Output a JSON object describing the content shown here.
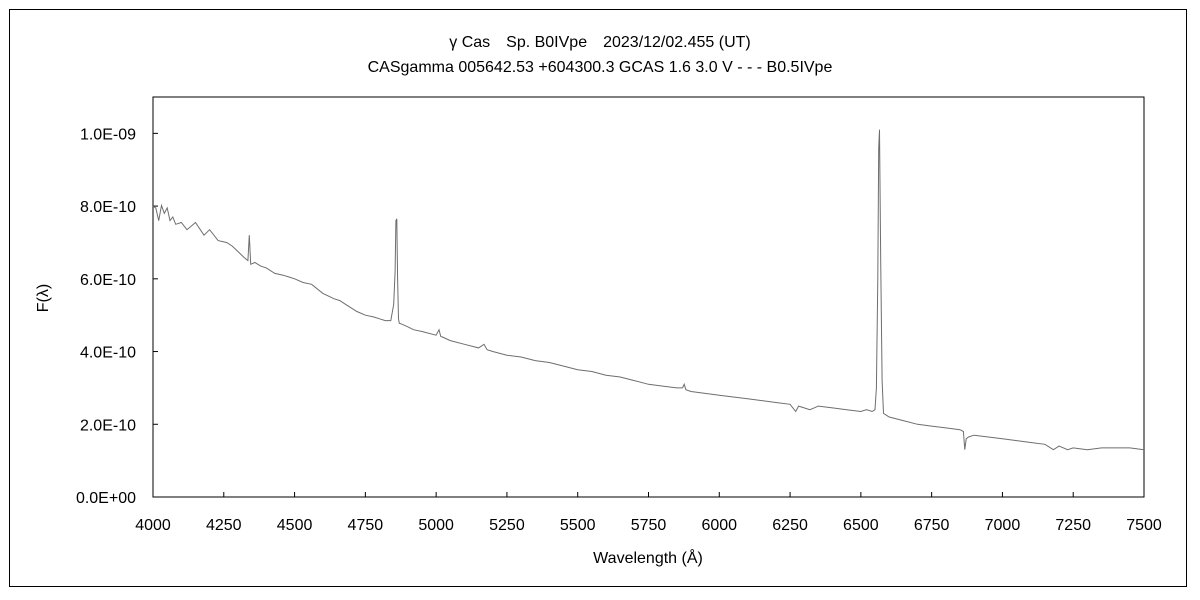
{
  "chart_data": {
    "type": "line",
    "title": "γ Cas　Sp. B0IVpe　2023/12/02.455 (UT)",
    "subtitle": "CASgamma 005642.53 +604300.3 GCAS 1.6 3.0 V - - - B0.5IVpe",
    "xlabel": "Wavelength (Å)",
    "ylabel": "F(λ)",
    "xlim": [
      4000,
      7500
    ],
    "ylim": [
      0,
      1.1e-09
    ],
    "xticks": [
      "4000",
      "4250",
      "4500",
      "4750",
      "5000",
      "5250",
      "5500",
      "5750",
      "6000",
      "6250",
      "6500",
      "6750",
      "7000",
      "7250",
      "7500"
    ],
    "yticks": [
      "0.0E+00",
      "2.0E-10",
      "4.0E-10",
      "6.0E-10",
      "8.0E-10",
      "1.0E-09"
    ],
    "ytick_values": [
      0,
      2e-10,
      4e-10,
      6e-10,
      8e-10,
      1e-09
    ],
    "grid": false,
    "series": [
      {
        "color": "#6e6e6e",
        "x": [
          4000,
          4010,
          4020,
          4030,
          4040,
          4050,
          4060,
          4070,
          4080,
          4100,
          4120,
          4150,
          4180,
          4200,
          4230,
          4260,
          4280,
          4300,
          4320,
          4335,
          4340,
          4345,
          4360,
          4380,
          4400,
          4430,
          4460,
          4480,
          4500,
          4530,
          4560,
          4600,
          4640,
          4660,
          4680,
          4700,
          4720,
          4750,
          4780,
          4800,
          4820,
          4840,
          4850,
          4855,
          4858,
          4861,
          4864,
          4867,
          4870,
          4880,
          4900,
          4920,
          4950,
          5000,
          5010,
          5016,
          5022,
          5050,
          5100,
          5150,
          5169,
          5180,
          5200,
          5250,
          5300,
          5350,
          5400,
          5450,
          5500,
          5550,
          5600,
          5650,
          5700,
          5750,
          5800,
          5850,
          5870,
          5876,
          5882,
          5900,
          5950,
          6000,
          6050,
          6100,
          6150,
          6200,
          6250,
          6270,
          6280,
          6300,
          6320,
          6350,
          6400,
          6450,
          6500,
          6520,
          6540,
          6550,
          6555,
          6560,
          6563,
          6566,
          6570,
          6575,
          6580,
          6590,
          6600,
          6650,
          6700,
          6750,
          6800,
          6850,
          6862,
          6867,
          6872,
          6880,
          6900,
          6950,
          7000,
          7050,
          7100,
          7150,
          7180,
          7200,
          7230,
          7250,
          7300,
          7350,
          7400,
          7450,
          7500
        ],
        "y": [
          8e-10,
          7.95e-10,
          7.6e-10,
          8.02e-10,
          7.8e-10,
          7.95e-10,
          7.6e-10,
          7.7e-10,
          7.5e-10,
          7.55e-10,
          7.35e-10,
          7.55e-10,
          7.2e-10,
          7.35e-10,
          7.05e-10,
          7e-10,
          6.9e-10,
          6.75e-10,
          6.6e-10,
          6.5e-10,
          7.2e-10,
          6.4e-10,
          6.45e-10,
          6.35e-10,
          6.3e-10,
          6.15e-10,
          6.1e-10,
          6.05e-10,
          6e-10,
          5.9e-10,
          5.85e-10,
          5.6e-10,
          5.45e-10,
          5.4e-10,
          5.3e-10,
          5.2e-10,
          5.1e-10,
          5e-10,
          4.95e-10,
          4.9e-10,
          4.85e-10,
          4.85e-10,
          5.3e-10,
          6.2e-10,
          7.6e-10,
          7.65e-10,
          6e-10,
          4.9e-10,
          4.78e-10,
          4.75e-10,
          4.68e-10,
          4.6e-10,
          4.55e-10,
          4.45e-10,
          4.6e-10,
          4.42e-10,
          4.4e-10,
          4.3e-10,
          4.2e-10,
          4.1e-10,
          4.2e-10,
          4.05e-10,
          4e-10,
          3.9e-10,
          3.85e-10,
          3.75e-10,
          3.7e-10,
          3.6e-10,
          3.5e-10,
          3.45e-10,
          3.35e-10,
          3.3e-10,
          3.2e-10,
          3.1e-10,
          3.05e-10,
          3e-10,
          3e-10,
          3.1e-10,
          2.95e-10,
          2.9e-10,
          2.85e-10,
          2.8e-10,
          2.75e-10,
          2.7e-10,
          2.65e-10,
          2.6e-10,
          2.55e-10,
          2.35e-10,
          2.5e-10,
          2.45e-10,
          2.4e-10,
          2.5e-10,
          2.45e-10,
          2.4e-10,
          2.35e-10,
          2.4e-10,
          2.35e-10,
          2.4e-10,
          3e-10,
          6e-10,
          9.6e-10,
          1.01e-09,
          6.5e-10,
          3.2e-10,
          2.3e-10,
          2.25e-10,
          2.2e-10,
          2.1e-10,
          2e-10,
          1.95e-10,
          1.9e-10,
          1.85e-10,
          1.8e-10,
          1.3e-10,
          1.6e-10,
          1.65e-10,
          1.7e-10,
          1.65e-10,
          1.6e-10,
          1.55e-10,
          1.5e-10,
          1.45e-10,
          1.3e-10,
          1.4e-10,
          1.3e-10,
          1.35e-10,
          1.3e-10,
          1.35e-10,
          1.35e-10,
          1.35e-10,
          1.3e-10
        ]
      }
    ]
  }
}
